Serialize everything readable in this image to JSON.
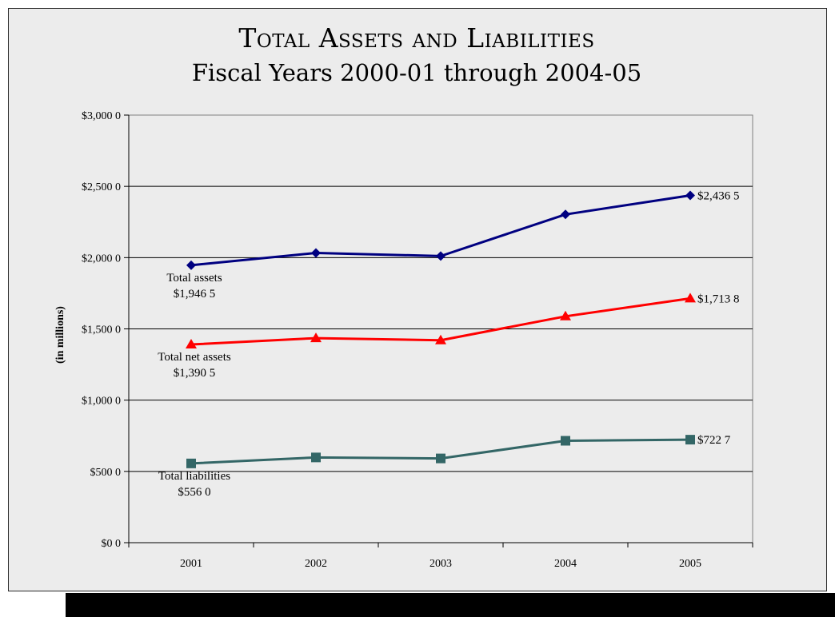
{
  "chart_data": {
    "type": "line",
    "title": "Total Assets and Liabilities",
    "subtitle": "Fiscal Years 2000-01 through 2004-05",
    "xlabel": "",
    "ylabel": "(in millions)",
    "categories": [
      "2001",
      "2002",
      "2003",
      "2004",
      "2005"
    ],
    "ylim": [
      0,
      3000
    ],
    "yticks": [
      {
        "value": 0,
        "label": "$0 0"
      },
      {
        "value": 500,
        "label": "$500 0"
      },
      {
        "value": 1000,
        "label": "$1,000 0"
      },
      {
        "value": 1500,
        "label": "$1,500 0"
      },
      {
        "value": 2000,
        "label": "$2,000 0"
      },
      {
        "value": 2500,
        "label": "$2,500 0"
      },
      {
        "value": 3000,
        "label": "$3,000 0"
      }
    ],
    "grid": true,
    "series": [
      {
        "key": "total_assets",
        "color": "#000080",
        "marker": "diamond",
        "values": [
          1946.5,
          2033,
          2011,
          2303,
          2436.5
        ],
        "label_start": [
          "Total assets",
          "$1,946 5"
        ],
        "label_end": "$2,436 5"
      },
      {
        "key": "total_net_assets",
        "color": "#ff0000",
        "marker": "triangle",
        "values": [
          1390.5,
          1435,
          1420,
          1588,
          1713.8
        ],
        "label_start": [
          "Total net assets",
          "$1,390 5"
        ],
        "label_end": "$1,713 8"
      },
      {
        "key": "total_liabilities",
        "color": "#336666",
        "marker": "square",
        "values": [
          556.0,
          598,
          591,
          715,
          722.7
        ],
        "label_start": [
          "Total liabilities",
          "$556 0"
        ],
        "label_end": "$722 7"
      }
    ]
  }
}
